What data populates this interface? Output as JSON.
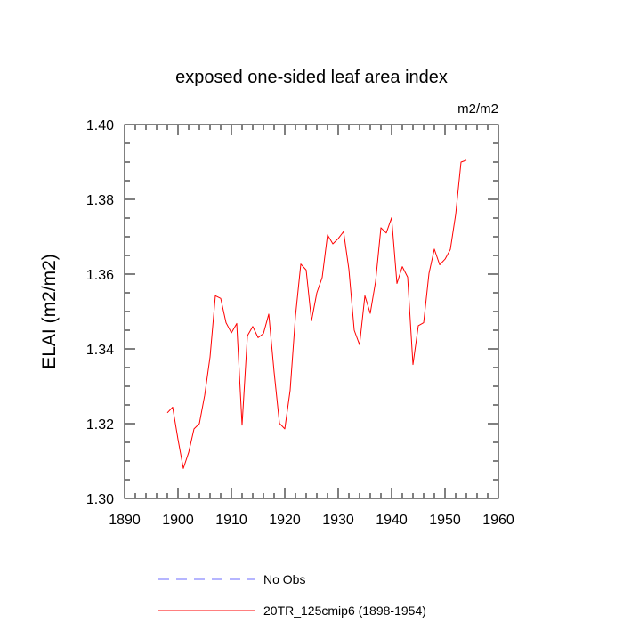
{
  "chart_data": {
    "type": "line",
    "title": "exposed one-sided leaf area index",
    "units": "m2/m2",
    "xlabel": "",
    "ylabel": "ELAI  (m2/m2)",
    "xlim": [
      1890,
      1960
    ],
    "ylim": [
      1.3,
      1.4
    ],
    "xticks": [
      1890,
      1900,
      1910,
      1920,
      1930,
      1940,
      1950,
      1960
    ],
    "xtick_labels": [
      "1890",
      "1900",
      "1910",
      "1920",
      "1930",
      "1940",
      "1950",
      "1960"
    ],
    "yticks": [
      1.3,
      1.32,
      1.34,
      1.36,
      1.38,
      1.4
    ],
    "ytick_labels": [
      "1.30",
      "1.32",
      "1.34",
      "1.36",
      "1.38",
      "1.40"
    ],
    "legend_position": "bottom",
    "series": [
      {
        "name": "No Obs",
        "color": "#6b6bff",
        "dash": true,
        "x": [],
        "values": []
      },
      {
        "name": "20TR_125cmip6 (1898-1954)",
        "color": "#ff0000",
        "dash": false,
        "x": [
          1898,
          1899,
          1900,
          1901,
          1902,
          1903,
          1904,
          1905,
          1906,
          1907,
          1908,
          1909,
          1910,
          1911,
          1912,
          1913,
          1914,
          1915,
          1916,
          1917,
          1918,
          1919,
          1920,
          1921,
          1922,
          1923,
          1924,
          1925,
          1926,
          1927,
          1928,
          1929,
          1930,
          1931,
          1932,
          1933,
          1934,
          1935,
          1936,
          1937,
          1938,
          1939,
          1940,
          1941,
          1942,
          1943,
          1944,
          1945,
          1946,
          1947,
          1948,
          1949,
          1950,
          1951,
          1952,
          1953,
          1954
        ],
        "values": [
          1.3229,
          1.3244,
          1.3158,
          1.308,
          1.3123,
          1.3186,
          1.32,
          1.3276,
          1.3378,
          1.3542,
          1.3535,
          1.347,
          1.3443,
          1.3468,
          1.3196,
          1.3435,
          1.346,
          1.343,
          1.3441,
          1.3493,
          1.3338,
          1.3201,
          1.3186,
          1.3289,
          1.3488,
          1.3627,
          1.3611,
          1.3475,
          1.355,
          1.3591,
          1.3705,
          1.3681,
          1.3695,
          1.3714,
          1.3613,
          1.345,
          1.3411,
          1.3542,
          1.3495,
          1.358,
          1.3724,
          1.371,
          1.3751,
          1.3575,
          1.362,
          1.3592,
          1.3358,
          1.3462,
          1.347,
          1.3602,
          1.3667,
          1.3625,
          1.364,
          1.3666,
          1.376,
          1.39,
          1.3905
        ]
      }
    ]
  }
}
